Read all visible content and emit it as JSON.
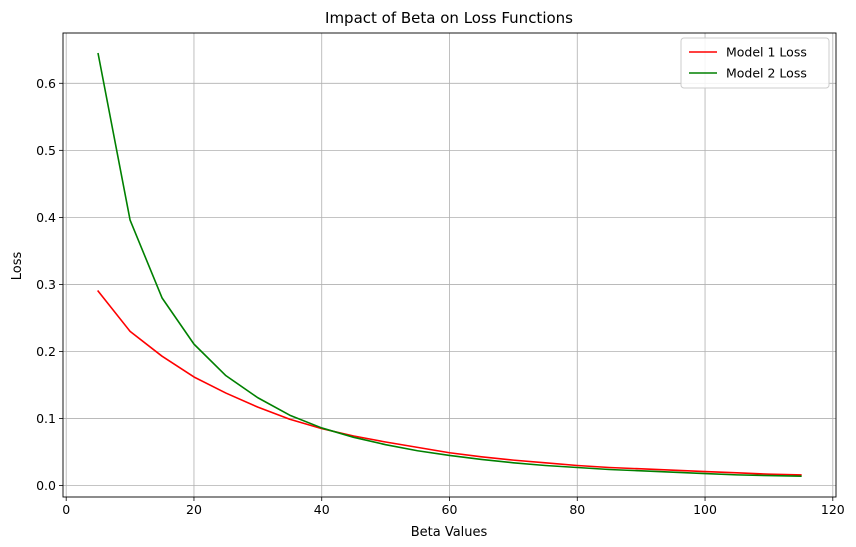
{
  "chart_data": {
    "type": "line",
    "title": "Impact of Beta on Loss Functions",
    "xlabel": "Beta Values",
    "ylabel": "Loss",
    "xlim": [
      -0.5,
      120.5
    ],
    "ylim": [
      -0.017,
      0.675
    ],
    "xticks": [
      0,
      20,
      40,
      60,
      80,
      100,
      120
    ],
    "yticks": [
      0.0,
      0.1,
      0.2,
      0.3,
      0.4,
      0.5,
      0.6
    ],
    "grid": true,
    "legend_position": "top-right",
    "x": [
      5,
      10,
      15,
      20,
      25,
      30,
      35,
      40,
      45,
      50,
      55,
      60,
      65,
      70,
      75,
      80,
      85,
      90,
      95,
      100,
      105,
      110,
      115
    ],
    "series": [
      {
        "name": "Model 1 Loss",
        "color": "#ff0000",
        "values": [
          0.29,
          0.23,
          0.193,
          0.162,
          0.138,
          0.117,
          0.099,
          0.085,
          0.074,
          0.065,
          0.057,
          0.049,
          0.043,
          0.038,
          0.034,
          0.03,
          0.027,
          0.025,
          0.023,
          0.021,
          0.019,
          0.017,
          0.016
        ]
      },
      {
        "name": "Model 2 Loss",
        "color": "#008000",
        "values": [
          0.644,
          0.396,
          0.28,
          0.211,
          0.164,
          0.131,
          0.105,
          0.086,
          0.072,
          0.061,
          0.052,
          0.045,
          0.039,
          0.034,
          0.03,
          0.027,
          0.024,
          0.022,
          0.02,
          0.018,
          0.016,
          0.015,
          0.014
        ]
      }
    ]
  }
}
